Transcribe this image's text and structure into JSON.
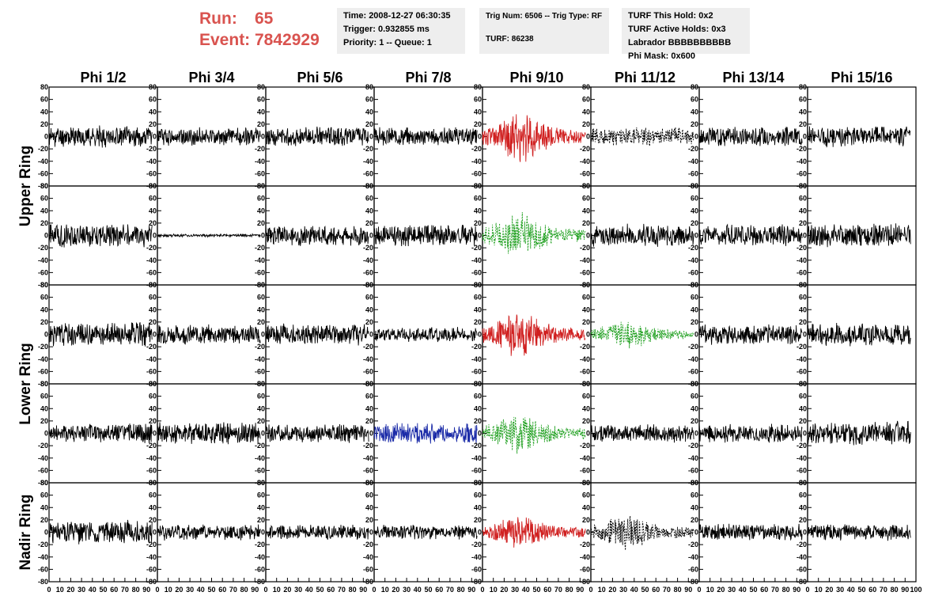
{
  "header": {
    "run_label": "Run:",
    "run_value": "65",
    "event_label": "Event:",
    "event_value": "7842929",
    "time": "Time: 2008-12-27 06:30:35",
    "trigger": "Trigger: 0.932855 ms",
    "priority": "Priority: 1 -- Queue: 1",
    "trig_num": "Trig Num: 6506 -- Trig Type: RF",
    "turf": "TURF: 86238",
    "turf_hold": "TURF This Hold: 0x2",
    "turf_active": "TURF Active Holds: 0x3",
    "labrador": "Labrador BBBBBBBBBB",
    "phi_mask": "Phi Mask: 0x600"
  },
  "chart_data": {
    "type": "line",
    "columns": [
      "Phi 1/2",
      "Phi 3/4",
      "Phi 5/6",
      "Phi 7/8",
      "Phi 9/10",
      "Phi 11/12",
      "Phi 13/14",
      "Phi 15/16"
    ],
    "ring_labels": [
      {
        "text": "Upper Ring",
        "rows": [
          0,
          1
        ]
      },
      {
        "text": "Lower Ring",
        "rows": [
          2,
          3
        ]
      },
      {
        "text": "Nadir Ring",
        "rows": [
          4
        ]
      }
    ],
    "xlim": [
      0,
      100
    ],
    "ylim": [
      -80,
      80
    ],
    "x_ticks": [
      "0",
      "10",
      "20",
      "30",
      "40",
      "50",
      "60",
      "70",
      "80",
      "90"
    ],
    "x_last_tick": "100",
    "y_ticks": [
      "80",
      "60",
      "40",
      "20",
      "0",
      "-20",
      "-40",
      "-60",
      "-80"
    ],
    "trace_x_range": [
      0,
      95
    ],
    "colors": {
      "normal": "#000000",
      "red": "#d02020",
      "green": "#20a020",
      "blue": "#1c2ca8"
    },
    "panels": [
      [
        {
          "color": "normal",
          "dash": false,
          "amp": 14,
          "seed": 11
        },
        {
          "color": "normal",
          "dash": false,
          "amp": 12,
          "seed": 12
        },
        {
          "color": "normal",
          "dash": false,
          "amp": 13,
          "seed": 13
        },
        {
          "color": "normal",
          "dash": false,
          "amp": 12,
          "seed": 14
        },
        {
          "color": "red",
          "dash": false,
          "amp": 22,
          "seed": 15,
          "burst": true
        },
        {
          "color": "normal",
          "dash": true,
          "amp": 12,
          "seed": 16
        },
        {
          "color": "normal",
          "dash": false,
          "amp": 13,
          "seed": 17
        },
        {
          "color": "normal",
          "dash": false,
          "amp": 14,
          "seed": 18
        }
      ],
      [
        {
          "color": "normal",
          "dash": false,
          "amp": 16,
          "seed": 21
        },
        {
          "color": "normal",
          "dash": false,
          "amp": 2,
          "seed": 22
        },
        {
          "color": "normal",
          "dash": false,
          "amp": 14,
          "seed": 23
        },
        {
          "color": "normal",
          "dash": false,
          "amp": 14,
          "seed": 24
        },
        {
          "color": "green",
          "dash": true,
          "amp": 20,
          "seed": 25,
          "burst": true
        },
        {
          "color": "normal",
          "dash": false,
          "amp": 15,
          "seed": 26
        },
        {
          "color": "normal",
          "dash": false,
          "amp": 14,
          "seed": 27
        },
        {
          "color": "normal",
          "dash": false,
          "amp": 16,
          "seed": 28
        }
      ],
      [
        {
          "color": "normal",
          "dash": false,
          "amp": 16,
          "seed": 31
        },
        {
          "color": "normal",
          "dash": false,
          "amp": 13,
          "seed": 32
        },
        {
          "color": "normal",
          "dash": false,
          "amp": 14,
          "seed": 33
        },
        {
          "color": "normal",
          "dash": false,
          "amp": 10,
          "seed": 34
        },
        {
          "color": "red",
          "dash": false,
          "amp": 20,
          "seed": 35,
          "burst": true
        },
        {
          "color": "green",
          "dash": true,
          "amp": 13,
          "seed": 36,
          "burst": true
        },
        {
          "color": "normal",
          "dash": false,
          "amp": 14,
          "seed": 37
        },
        {
          "color": "normal",
          "dash": false,
          "amp": 15,
          "seed": 38
        }
      ],
      [
        {
          "color": "normal",
          "dash": false,
          "amp": 13,
          "seed": 41
        },
        {
          "color": "normal",
          "dash": false,
          "amp": 15,
          "seed": 42
        },
        {
          "color": "normal",
          "dash": false,
          "amp": 12,
          "seed": 43
        },
        {
          "color": "blue",
          "dash": false,
          "amp": 14,
          "seed": 44
        },
        {
          "color": "green",
          "dash": true,
          "amp": 18,
          "seed": 45,
          "burst": true
        },
        {
          "color": "normal",
          "dash": false,
          "amp": 12,
          "seed": 46
        },
        {
          "color": "normal",
          "dash": false,
          "amp": 12,
          "seed": 47
        },
        {
          "color": "normal",
          "dash": false,
          "amp": 17,
          "seed": 48
        }
      ],
      [
        {
          "color": "normal",
          "dash": false,
          "amp": 16,
          "seed": 51
        },
        {
          "color": "normal",
          "dash": false,
          "amp": 11,
          "seed": 52
        },
        {
          "color": "normal",
          "dash": false,
          "amp": 10,
          "seed": 53
        },
        {
          "color": "normal",
          "dash": false,
          "amp": 10,
          "seed": 54
        },
        {
          "color": "red",
          "dash": false,
          "amp": 15,
          "seed": 55,
          "burst": true
        },
        {
          "color": "normal",
          "dash": true,
          "amp": 16,
          "seed": 56,
          "burst": true
        },
        {
          "color": "normal",
          "dash": false,
          "amp": 11,
          "seed": 57
        },
        {
          "color": "normal",
          "dash": false,
          "amp": 11,
          "seed": 58
        }
      ]
    ]
  }
}
